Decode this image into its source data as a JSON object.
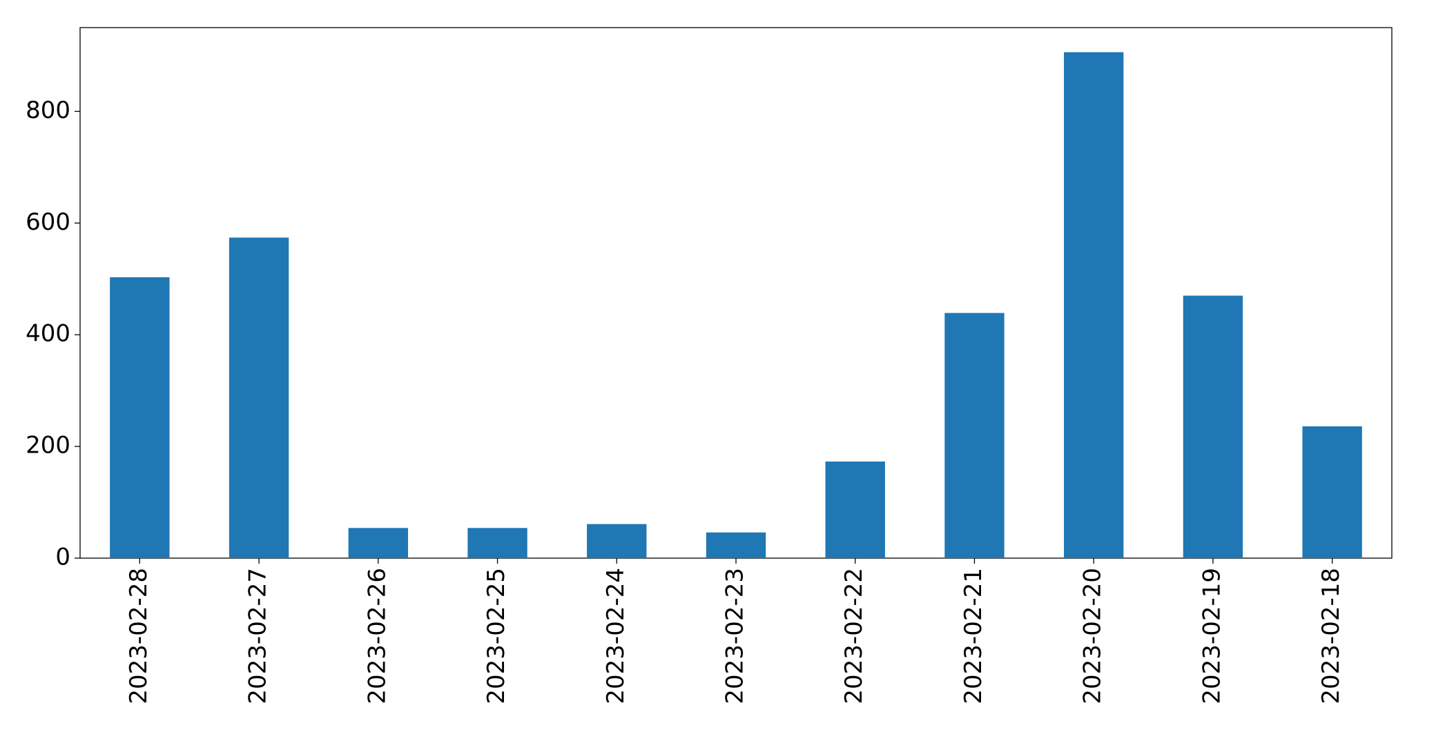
{
  "chart_data": {
    "type": "bar",
    "categories": [
      "2023-02-28",
      "2023-02-27",
      "2023-02-26",
      "2023-02-25",
      "2023-02-24",
      "2023-02-23",
      "2023-02-22",
      "2023-02-21",
      "2023-02-20",
      "2023-02-19",
      "2023-02-18"
    ],
    "values": [
      503,
      574,
      54,
      54,
      61,
      46,
      173,
      439,
      906,
      470,
      236
    ],
    "color": "#1f77b4",
    "ylim": [
      0,
      950
    ],
    "yticks": [
      0,
      200,
      400,
      600,
      800
    ],
    "grid": false
  }
}
